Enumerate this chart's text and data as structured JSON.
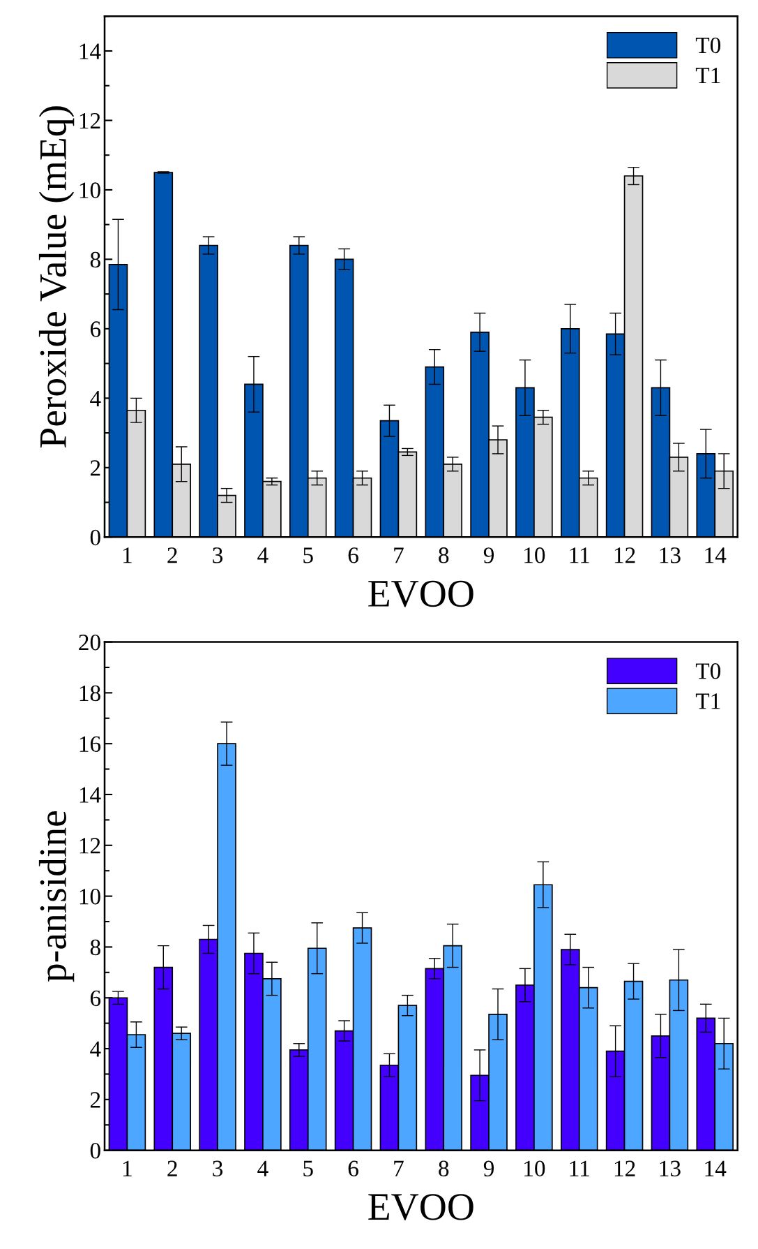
{
  "chart_data": [
    {
      "type": "bar",
      "xlabel": "EVOO",
      "ylabel": "Peroxide Value (mEq)",
      "categories": [
        "1",
        "2",
        "3",
        "4",
        "5",
        "6",
        "7",
        "8",
        "9",
        "10",
        "11",
        "12",
        "13",
        "14"
      ],
      "ylim": [
        0,
        15
      ],
      "yticks": [
        0,
        2,
        4,
        6,
        8,
        10,
        12,
        14
      ],
      "legend": "top right",
      "grid": false,
      "series": [
        {
          "name": "T0",
          "color": "#0055b0",
          "values": [
            7.85,
            10.5,
            8.4,
            4.4,
            8.4,
            8.0,
            3.35,
            4.9,
            5.9,
            4.3,
            6.0,
            5.85,
            4.3,
            2.4
          ],
          "errors": [
            1.3,
            0.02,
            0.25,
            0.8,
            0.25,
            0.3,
            0.45,
            0.5,
            0.55,
            0.8,
            0.7,
            0.6,
            0.8,
            0.7
          ]
        },
        {
          "name": "T1",
          "color": "#d9d9d9",
          "values": [
            3.65,
            2.1,
            1.2,
            1.6,
            1.7,
            1.7,
            2.45,
            2.1,
            2.8,
            3.45,
            1.7,
            10.4,
            2.3,
            1.9
          ],
          "errors": [
            0.35,
            0.5,
            0.2,
            0.1,
            0.2,
            0.2,
            0.1,
            0.2,
            0.4,
            0.2,
            0.2,
            0.25,
            0.4,
            0.5
          ]
        }
      ]
    },
    {
      "type": "bar",
      "xlabel": "EVOO",
      "ylabel": "p-anisidine",
      "categories": [
        "1",
        "2",
        "3",
        "4",
        "5",
        "6",
        "7",
        "8",
        "9",
        "10",
        "11",
        "12",
        "13",
        "14"
      ],
      "ylim": [
        0,
        20
      ],
      "yticks": [
        0,
        2,
        4,
        6,
        8,
        10,
        12,
        14,
        16,
        18,
        20
      ],
      "legend": "top right",
      "grid": false,
      "series": [
        {
          "name": "T0",
          "color": "#4400ff",
          "values": [
            6.0,
            7.2,
            8.3,
            7.75,
            3.95,
            4.7,
            3.35,
            7.15,
            2.95,
            6.5,
            7.9,
            3.9,
            4.5,
            5.2
          ],
          "errors": [
            0.25,
            0.85,
            0.55,
            0.8,
            0.25,
            0.4,
            0.45,
            0.4,
            1.0,
            0.65,
            0.6,
            1.0,
            0.85,
            0.55
          ]
        },
        {
          "name": "T1",
          "color": "#4da6ff",
          "values": [
            4.55,
            4.6,
            16.0,
            6.75,
            7.95,
            8.75,
            5.7,
            8.05,
            5.35,
            10.45,
            6.4,
            6.65,
            6.7,
            4.2
          ],
          "errors": [
            0.5,
            0.25,
            0.85,
            0.65,
            1.0,
            0.6,
            0.4,
            0.85,
            1.0,
            0.9,
            0.8,
            0.7,
            1.2,
            1.0
          ]
        }
      ]
    }
  ]
}
